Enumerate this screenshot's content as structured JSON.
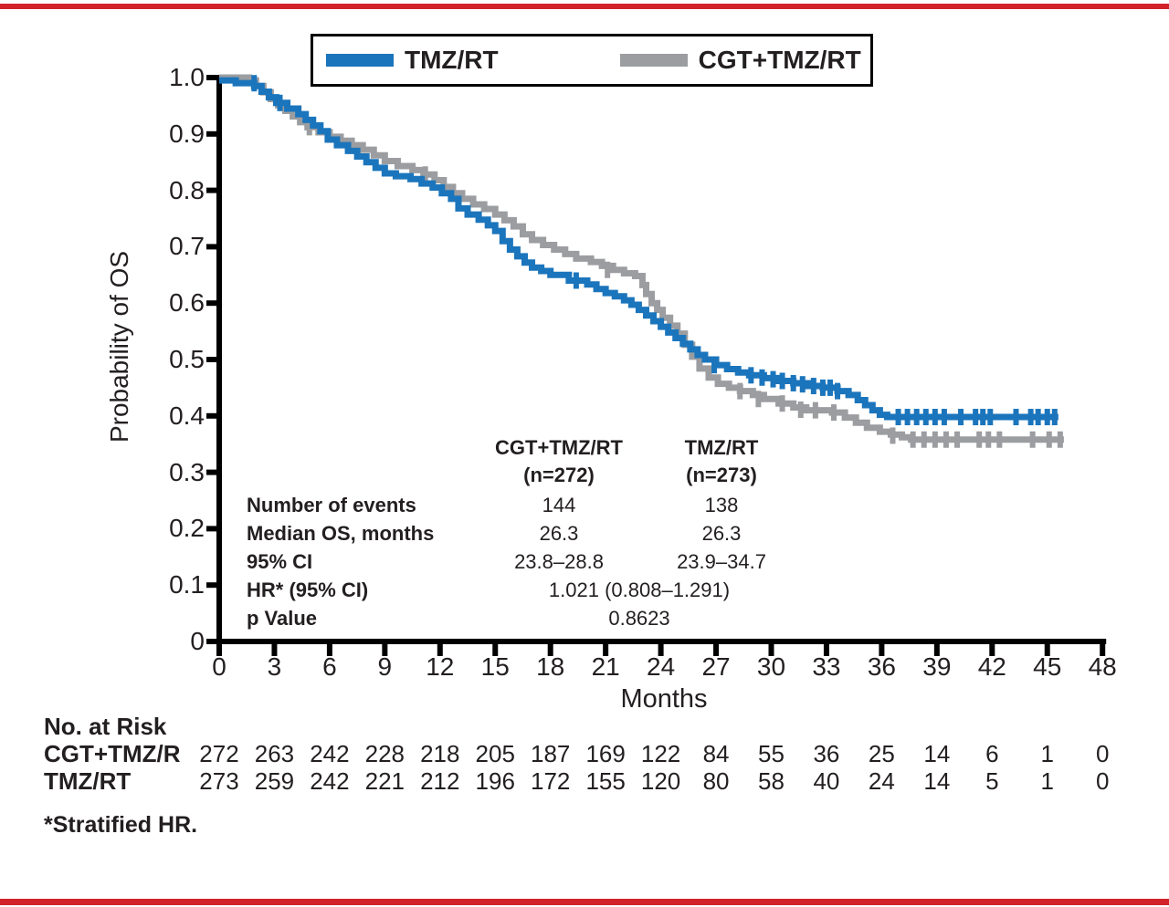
{
  "colors": {
    "tmzrt_blue": "#1B75BC",
    "cgt_gray": "#9B9DA0",
    "rule_red": "#D2232A",
    "axis_black": "#000000",
    "text": "#231f20"
  },
  "legend": {
    "items": [
      {
        "label": "TMZ/RT",
        "color": "#1B75BC"
      },
      {
        "label": "CGT+TMZ/RT",
        "color": "#9B9DA0"
      }
    ]
  },
  "chart_data": {
    "type": "line",
    "subtype": "kaplan-meier-step",
    "title": "",
    "xlabel": "Months",
    "ylabel": "Probability of OS",
    "xlim": [
      0,
      48
    ],
    "ylim": [
      0,
      1.0
    ],
    "grid": false,
    "legend_position": "top",
    "xticks": [
      0,
      3,
      6,
      9,
      12,
      15,
      18,
      21,
      24,
      27,
      30,
      33,
      36,
      39,
      42,
      45,
      48
    ],
    "ytick_values": [
      0,
      0.1,
      0.2,
      0.3,
      0.4,
      0.5,
      0.6,
      0.7,
      0.8,
      0.9,
      1.0
    ],
    "ytick_labels": [
      "0",
      "0.1",
      "0.2",
      "0.3",
      "0.4",
      "0.5",
      "0.6",
      "0.7",
      "0.8",
      "0.9",
      "1.0"
    ],
    "series": [
      {
        "name": "TMZ/RT",
        "color": "#1B75BC",
        "points": [
          [
            0,
            0.995
          ],
          [
            0.9,
            0.99
          ],
          [
            1.9,
            0.985
          ],
          [
            2.3,
            0.975
          ],
          [
            2.7,
            0.965
          ],
          [
            3.1,
            0.955
          ],
          [
            3.7,
            0.945
          ],
          [
            4.3,
            0.935
          ],
          [
            4.7,
            0.925
          ],
          [
            5.1,
            0.915
          ],
          [
            5.5,
            0.905
          ],
          [
            5.9,
            0.89
          ],
          [
            6.4,
            0.88
          ],
          [
            7.0,
            0.87
          ],
          [
            7.5,
            0.86
          ],
          [
            8.0,
            0.85
          ],
          [
            8.5,
            0.84
          ],
          [
            9.0,
            0.83
          ],
          [
            9.6,
            0.825
          ],
          [
            10.4,
            0.82
          ],
          [
            11.0,
            0.812
          ],
          [
            11.6,
            0.805
          ],
          [
            12.1,
            0.795
          ],
          [
            12.6,
            0.785
          ],
          [
            13.0,
            0.768
          ],
          [
            13.5,
            0.757
          ],
          [
            14.1,
            0.748
          ],
          [
            14.6,
            0.738
          ],
          [
            15.0,
            0.728
          ],
          [
            15.4,
            0.71
          ],
          [
            15.8,
            0.695
          ],
          [
            16.2,
            0.683
          ],
          [
            16.6,
            0.672
          ],
          [
            17.0,
            0.663
          ],
          [
            17.5,
            0.657
          ],
          [
            18.0,
            0.65
          ],
          [
            19.0,
            0.64
          ],
          [
            20.0,
            0.633
          ],
          [
            20.5,
            0.625
          ],
          [
            21.0,
            0.618
          ],
          [
            21.5,
            0.612
          ],
          [
            22.0,
            0.605
          ],
          [
            22.4,
            0.597
          ],
          [
            22.8,
            0.588
          ],
          [
            23.2,
            0.578
          ],
          [
            23.6,
            0.568
          ],
          [
            24.0,
            0.558
          ],
          [
            24.4,
            0.548
          ],
          [
            24.8,
            0.538
          ],
          [
            25.2,
            0.528
          ],
          [
            25.6,
            0.518
          ],
          [
            26.0,
            0.508
          ],
          [
            26.4,
            0.5
          ],
          [
            27.0,
            0.49
          ],
          [
            27.6,
            0.483
          ],
          [
            28.2,
            0.477
          ],
          [
            28.8,
            0.472
          ],
          [
            29.6,
            0.467
          ],
          [
            30.4,
            0.462
          ],
          [
            31.2,
            0.458
          ],
          [
            32.0,
            0.453
          ],
          [
            32.8,
            0.45
          ],
          [
            33.6,
            0.444
          ],
          [
            34.2,
            0.437
          ],
          [
            34.7,
            0.428
          ],
          [
            35.1,
            0.419
          ],
          [
            35.5,
            0.41
          ],
          [
            35.9,
            0.402
          ],
          [
            36.3,
            0.398
          ],
          [
            45.6,
            0.398
          ]
        ],
        "censors": [
          [
            1.9,
            0.99
          ],
          [
            3.3,
            0.955
          ],
          [
            19.4,
            0.64
          ],
          [
            26.9,
            0.49
          ],
          [
            28.9,
            0.472
          ],
          [
            29.5,
            0.468
          ],
          [
            30.1,
            0.465
          ],
          [
            30.6,
            0.462
          ],
          [
            31.2,
            0.458
          ],
          [
            31.7,
            0.456
          ],
          [
            32.3,
            0.453
          ],
          [
            32.8,
            0.45
          ],
          [
            33.2,
            0.45
          ],
          [
            33.6,
            0.444
          ],
          [
            36.9,
            0.398
          ],
          [
            37.4,
            0.398
          ],
          [
            37.9,
            0.398
          ],
          [
            38.4,
            0.398
          ],
          [
            38.9,
            0.398
          ],
          [
            39.4,
            0.398
          ],
          [
            40.3,
            0.398
          ],
          [
            41.1,
            0.398
          ],
          [
            41.5,
            0.398
          ],
          [
            41.9,
            0.398
          ],
          [
            43.3,
            0.398
          ],
          [
            44.1,
            0.398
          ],
          [
            44.5,
            0.398
          ],
          [
            45.0,
            0.398
          ],
          [
            45.4,
            0.398
          ]
        ]
      },
      {
        "name": "CGT+TMZ/RT",
        "color": "#9B9DA0",
        "points": [
          [
            0,
            1.0
          ],
          [
            1.6,
            0.995
          ],
          [
            2.0,
            0.985
          ],
          [
            2.4,
            0.974
          ],
          [
            2.8,
            0.962
          ],
          [
            3.2,
            0.951
          ],
          [
            3.6,
            0.941
          ],
          [
            4.0,
            0.931
          ],
          [
            4.4,
            0.921
          ],
          [
            4.8,
            0.912
          ],
          [
            5.4,
            0.903
          ],
          [
            6.0,
            0.895
          ],
          [
            6.6,
            0.888
          ],
          [
            7.2,
            0.88
          ],
          [
            7.8,
            0.872
          ],
          [
            8.4,
            0.862
          ],
          [
            9.0,
            0.852
          ],
          [
            9.7,
            0.843
          ],
          [
            10.5,
            0.836
          ],
          [
            11.1,
            0.828
          ],
          [
            11.7,
            0.818
          ],
          [
            12.2,
            0.806
          ],
          [
            12.7,
            0.795
          ],
          [
            13.2,
            0.785
          ],
          [
            13.8,
            0.775
          ],
          [
            14.4,
            0.767
          ],
          [
            15.0,
            0.757
          ],
          [
            15.5,
            0.747
          ],
          [
            16.0,
            0.736
          ],
          [
            16.5,
            0.722
          ],
          [
            17.0,
            0.712
          ],
          [
            17.6,
            0.703
          ],
          [
            18.2,
            0.695
          ],
          [
            18.8,
            0.687
          ],
          [
            19.4,
            0.679
          ],
          [
            20.2,
            0.673
          ],
          [
            20.8,
            0.666
          ],
          [
            21.4,
            0.659
          ],
          [
            22.0,
            0.653
          ],
          [
            22.6,
            0.648
          ],
          [
            23.0,
            0.632
          ],
          [
            23.2,
            0.616
          ],
          [
            23.5,
            0.6
          ],
          [
            23.8,
            0.588
          ],
          [
            24.1,
            0.574
          ],
          [
            24.5,
            0.56
          ],
          [
            24.9,
            0.546
          ],
          [
            25.3,
            0.526
          ],
          [
            25.7,
            0.505
          ],
          [
            26.1,
            0.484
          ],
          [
            26.6,
            0.468
          ],
          [
            27.1,
            0.457
          ],
          [
            27.7,
            0.45
          ],
          [
            28.3,
            0.444
          ],
          [
            29.0,
            0.437
          ],
          [
            29.6,
            0.43
          ],
          [
            30.4,
            0.422
          ],
          [
            31.2,
            0.415
          ],
          [
            31.9,
            0.41
          ],
          [
            33.3,
            0.406
          ],
          [
            34.0,
            0.397
          ],
          [
            34.6,
            0.388
          ],
          [
            35.2,
            0.379
          ],
          [
            35.9,
            0.372
          ],
          [
            36.5,
            0.367
          ],
          [
            37.1,
            0.362
          ],
          [
            37.6,
            0.358
          ],
          [
            45.9,
            0.358
          ]
        ],
        "censors": [
          [
            4.9,
            0.912
          ],
          [
            11.2,
            0.828
          ],
          [
            21.1,
            0.659
          ],
          [
            28.3,
            0.444
          ],
          [
            29.3,
            0.43
          ],
          [
            30.6,
            0.422
          ],
          [
            31.6,
            0.411
          ],
          [
            32.4,
            0.41
          ],
          [
            33.4,
            0.406
          ],
          [
            36.6,
            0.365
          ],
          [
            37.7,
            0.358
          ],
          [
            38.3,
            0.358
          ],
          [
            38.9,
            0.358
          ],
          [
            39.5,
            0.358
          ],
          [
            40.1,
            0.358
          ],
          [
            41.3,
            0.358
          ],
          [
            41.8,
            0.358
          ],
          [
            42.4,
            0.358
          ],
          [
            44.2,
            0.358
          ],
          [
            45.1,
            0.358
          ],
          [
            45.7,
            0.358
          ]
        ]
      }
    ]
  },
  "stats_table": {
    "columns": [
      {
        "name": "CGT+TMZ/RT",
        "n_label": "(n=272)"
      },
      {
        "name": "TMZ/RT",
        "n_label": "(n=273)"
      }
    ],
    "rows": [
      {
        "label": "Number of events",
        "values": [
          "144",
          "138"
        ]
      },
      {
        "label": "Median OS, months",
        "values": [
          "26.3",
          "26.3"
        ]
      },
      {
        "label": "95% CI",
        "values": [
          "23.8–28.8",
          "23.9–34.7"
        ]
      },
      {
        "label": "HR* (95% CI)",
        "span_value": "1.021 (0.808–1.291)"
      },
      {
        "label": "p Value",
        "span_value": "0.8623"
      }
    ]
  },
  "risk_table": {
    "title": "No. at Risk",
    "rows": [
      {
        "label": "CGT+TMZ/R",
        "values": [
          "272",
          "263",
          "242",
          "228",
          "218",
          "205",
          "187",
          "169",
          "122",
          "84",
          "55",
          "36",
          "25",
          "14",
          "6",
          "1",
          "0"
        ]
      },
      {
        "label": "TMZ/RT",
        "values": [
          "273",
          "259",
          "242",
          "221",
          "212",
          "196",
          "172",
          "155",
          "120",
          "80",
          "58",
          "40",
          "24",
          "14",
          "5",
          "1",
          "0"
        ]
      }
    ]
  },
  "footnote": "*Stratified HR."
}
